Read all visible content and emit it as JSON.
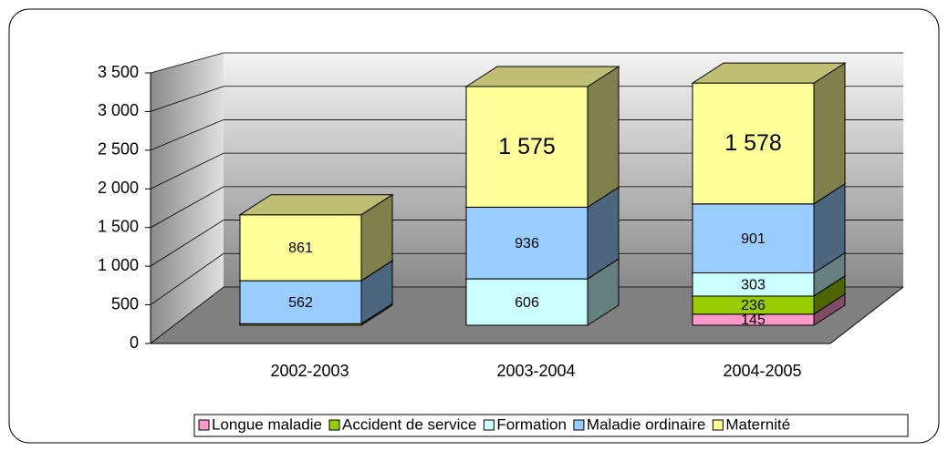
{
  "chart_data": {
    "type": "bar3d_stacked",
    "categories": [
      "2002-2003",
      "2003-2004",
      "2004-2005"
    ],
    "series": [
      {
        "name": "Longue maladie",
        "color": "#ff99cc",
        "values": [
          null,
          null,
          145
        ],
        "value_labels": [
          null,
          null,
          "145"
        ]
      },
      {
        "name": "Accident de service",
        "color": "#99cc00",
        "values": [
          20,
          null,
          236
        ],
        "value_labels": [
          null,
          null,
          "236"
        ]
      },
      {
        "name": "Formation",
        "color": "#ccffff",
        "values": [
          null,
          606,
          303
        ],
        "value_labels": [
          null,
          "606",
          "303"
        ]
      },
      {
        "name": "Maladie ordinaire",
        "color": "#99ccff",
        "values": [
          562,
          936,
          901
        ],
        "value_labels": [
          "562",
          "936",
          "901"
        ]
      },
      {
        "name": "Maternité",
        "color": "#ffff99",
        "values": [
          861,
          1575,
          1578
        ],
        "value_labels": [
          "861",
          "1 575",
          "1 578"
        ]
      }
    ],
    "ylim": [
      0,
      3500
    ],
    "yticks": [
      0,
      500,
      {
        "value": 1000,
        "label": "1 000"
      },
      {
        "value": 1500,
        "label": "1 500"
      },
      {
        "value": 2000,
        "label": "2 000"
      },
      {
        "value": 2500,
        "label": "2 500"
      },
      {
        "value": 3000,
        "label": "3 000"
      },
      {
        "value": 3500,
        "label": "3 500"
      }
    ],
    "grid": true,
    "legend": "bottom"
  }
}
